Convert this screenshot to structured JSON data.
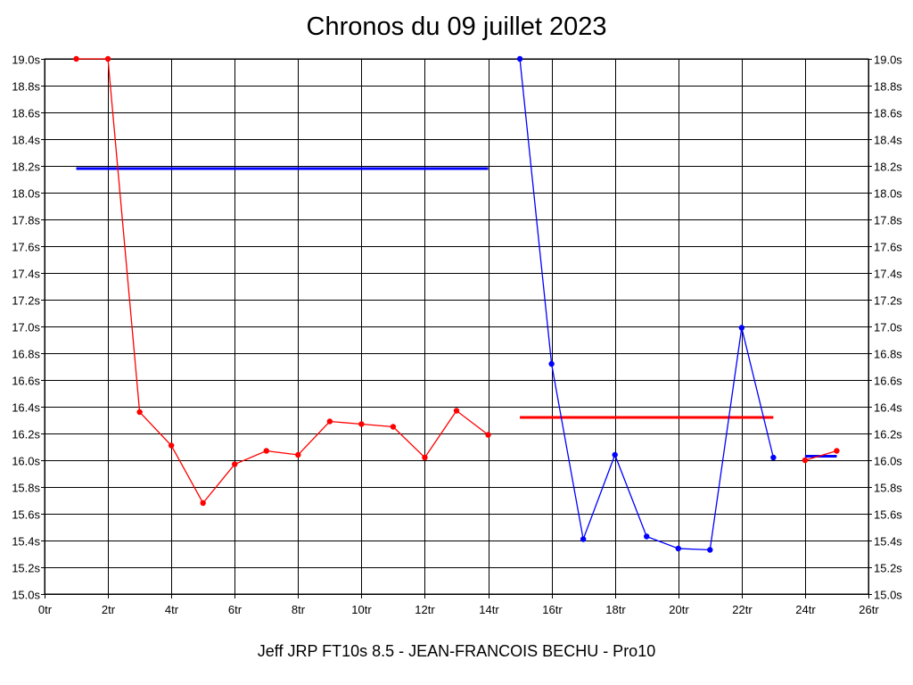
{
  "chart_data": {
    "type": "line",
    "title": "Chronos du 09 juillet 2023",
    "footer": "Jeff JRP FT10s 8.5 - JEAN-FRANCOIS BECHU - Pro10",
    "xlabel": "",
    "ylabel": "",
    "xlim": [
      0,
      26
    ],
    "ylim": [
      15.0,
      19.0
    ],
    "x_ticks": [
      "0tr",
      "2tr",
      "4tr",
      "6tr",
      "8tr",
      "10tr",
      "12tr",
      "14tr",
      "16tr",
      "18tr",
      "20tr",
      "22tr",
      "24tr",
      "26tr"
    ],
    "y_ticks": [
      "15.0s",
      "15.2s",
      "15.4s",
      "15.6s",
      "15.8s",
      "16.0s",
      "16.2s",
      "16.4s",
      "16.6s",
      "16.8s",
      "17.0s",
      "17.2s",
      "17.4s",
      "17.6s",
      "17.8s",
      "18.0s",
      "18.2s",
      "18.4s",
      "18.6s",
      "18.8s",
      "19.0s"
    ],
    "grid": true,
    "series": [
      {
        "color": "#ff0000",
        "points": [
          [
            1,
            19.0
          ],
          [
            2,
            19.0
          ],
          [
            3,
            16.36
          ],
          [
            4,
            16.11
          ],
          [
            5,
            15.68
          ],
          [
            6,
            15.97
          ],
          [
            7,
            16.07
          ],
          [
            8,
            16.04
          ],
          [
            9,
            16.29
          ],
          [
            10,
            16.27
          ],
          [
            11,
            16.25
          ],
          [
            12,
            16.02
          ],
          [
            13,
            16.37
          ],
          [
            14,
            16.19
          ]
        ]
      },
      {
        "color": "#0000ff",
        "points": [
          [
            15,
            19.0
          ],
          [
            16,
            16.72
          ],
          [
            17,
            15.41
          ],
          [
            18,
            16.04
          ],
          [
            19,
            15.43
          ],
          [
            20,
            15.34
          ],
          [
            21,
            15.33
          ],
          [
            22,
            16.99
          ],
          [
            23,
            16.02
          ]
        ]
      },
      {
        "color": "#ff0000",
        "points": [
          [
            24,
            16.0
          ],
          [
            25,
            16.07
          ]
        ]
      }
    ],
    "averages": [
      {
        "color": "#0000ff",
        "x": [
          1,
          14
        ],
        "value": 18.18
      },
      {
        "color": "#ff0000",
        "x": [
          15,
          23
        ],
        "value": 16.32
      },
      {
        "color": "#0000ff",
        "x": [
          24,
          25
        ],
        "value": 16.03
      }
    ]
  }
}
